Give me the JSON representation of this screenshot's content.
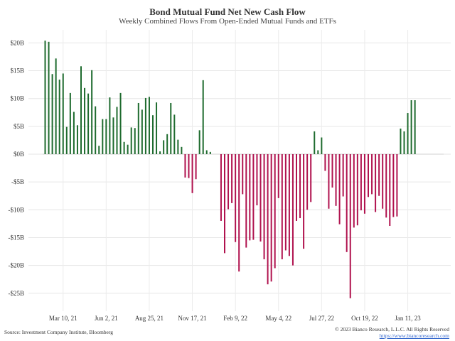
{
  "chart_data": {
    "type": "bar",
    "title": "Bond Mutual Fund Net New Cash Flow",
    "subtitle": "Weekly Combined Flows From Open-Ended Mutual Funds and ETFs",
    "ylim": [
      -28,
      22
    ],
    "yticks": [
      {
        "value": 20,
        "label": "$20B"
      },
      {
        "value": 15,
        "label": "$15B"
      },
      {
        "value": 10,
        "label": "$10B"
      },
      {
        "value": 5,
        "label": "$5B"
      },
      {
        "value": 0,
        "label": "$0B"
      },
      {
        "value": -5,
        "label": "-$5B"
      },
      {
        "value": -10,
        "label": "-$10B"
      },
      {
        "value": -15,
        "label": "-$15B"
      },
      {
        "value": -20,
        "label": "-$20B"
      },
      {
        "value": -25,
        "label": "-$25B"
      }
    ],
    "xticks": [
      {
        "index": 5,
        "label": "Mar 10, 21"
      },
      {
        "index": 17,
        "label": "Jun 2, 21"
      },
      {
        "index": 29,
        "label": "Aug 25, 21"
      },
      {
        "index": 41,
        "label": "Nov 17, 21"
      },
      {
        "index": 53,
        "label": "Feb 9, 22"
      },
      {
        "index": 65,
        "label": "May 4, 22"
      },
      {
        "index": 77,
        "label": "Jul 27, 22"
      },
      {
        "index": 89,
        "label": "Oct 19, 22"
      },
      {
        "index": 101,
        "label": "Jan 11, 23"
      }
    ],
    "positive_color": "#1e6b2e",
    "negative_color": "#b0124e",
    "grid": true,
    "values": [
      20.4,
      20.2,
      14.4,
      17.2,
      13.4,
      14.5,
      4.9,
      11.0,
      7.6,
      5.2,
      15.8,
      11.9,
      10.9,
      15.1,
      8.6,
      1.5,
      6.3,
      6.3,
      10.2,
      6.6,
      8.5,
      11.0,
      2.2,
      1.7,
      4.8,
      4.7,
      9.2,
      8.0,
      10.1,
      10.3,
      7.0,
      9.3,
      0.5,
      2.5,
      3.6,
      9.2,
      7.1,
      2.6,
      1.3,
      -4.2,
      -4.3,
      -7.0,
      -4.5,
      4.3,
      13.3,
      0.7,
      0.4,
      0.0,
      0.0,
      -12.0,
      -17.8,
      -9.9,
      -8.8,
      -15.8,
      -21.1,
      -7.2,
      -16.8,
      -15.5,
      -15.4,
      -9.2,
      -15.7,
      -18.9,
      -23.4,
      -22.9,
      -20.5,
      -7.9,
      -18.9,
      -17.3,
      -18.3,
      -20.0,
      -12.0,
      -11.5,
      -17.0,
      -10.0,
      -8.6,
      4.1,
      0.7,
      3.0,
      -3.0,
      -9.8,
      -6.0,
      -9.3,
      -12.6,
      -7.6,
      -17.6,
      -25.9,
      -13.2,
      -12.8,
      -10.1,
      -10.7,
      -7.7,
      -7.2,
      -10.4,
      -7.5,
      -9.8,
      -11.4,
      -12.9,
      -11.3,
      -11.2,
      4.6,
      4.1,
      7.4,
      9.7,
      9.7
    ]
  },
  "footer": {
    "source": "Source: Investment Company Institute, Bloomberg",
    "copyright": "© 2023 Bianco Research, L.L.C. All Rights Reserved",
    "link": "https://www.biancoresearch.com"
  }
}
